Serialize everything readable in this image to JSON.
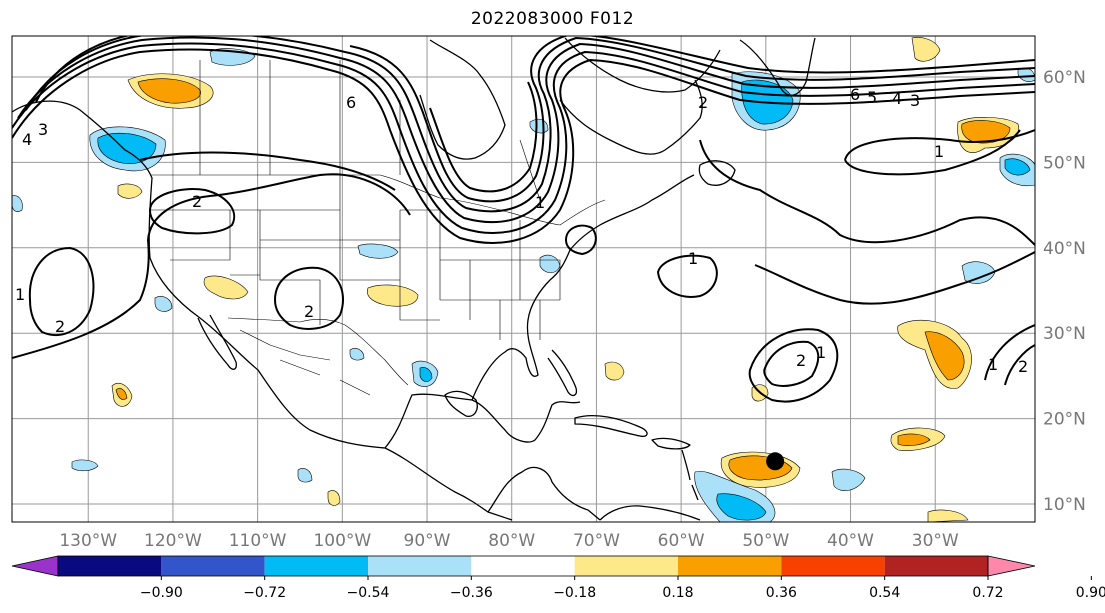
{
  "title": "2022083000 F012",
  "map": {
    "longitude_labels": [
      "130°W",
      "120°W",
      "110°W",
      "100°W",
      "90°W",
      "80°W",
      "70°W",
      "60°W",
      "50°W",
      "40°W",
      "30°W"
    ],
    "latitude_labels": [
      "60°N",
      "50°N",
      "40°N",
      "30°N",
      "20°N",
      "10°N"
    ],
    "gridlines": true,
    "marker": {
      "name": "storm-position-marker",
      "lon": -48.9,
      "lat": 15.0
    },
    "contour_labels": [
      "1",
      "2",
      "3",
      "4",
      "5",
      "6"
    ],
    "contour_color": "#000000"
  },
  "colorbar": {
    "ticks": [
      "−0.90",
      "−0.72",
      "−0.54",
      "−0.36",
      "−0.18",
      "0.18",
      "0.36",
      "0.54",
      "0.72",
      "0.90"
    ],
    "colors": [
      "#9933cc",
      "#0a0a80",
      "#3355cc",
      "#00bbf5",
      "#aae0f8",
      "#ffffff",
      "#fde88a",
      "#f9a000",
      "#f84000",
      "#b22222",
      "#ff88aa"
    ],
    "extend": "both"
  }
}
